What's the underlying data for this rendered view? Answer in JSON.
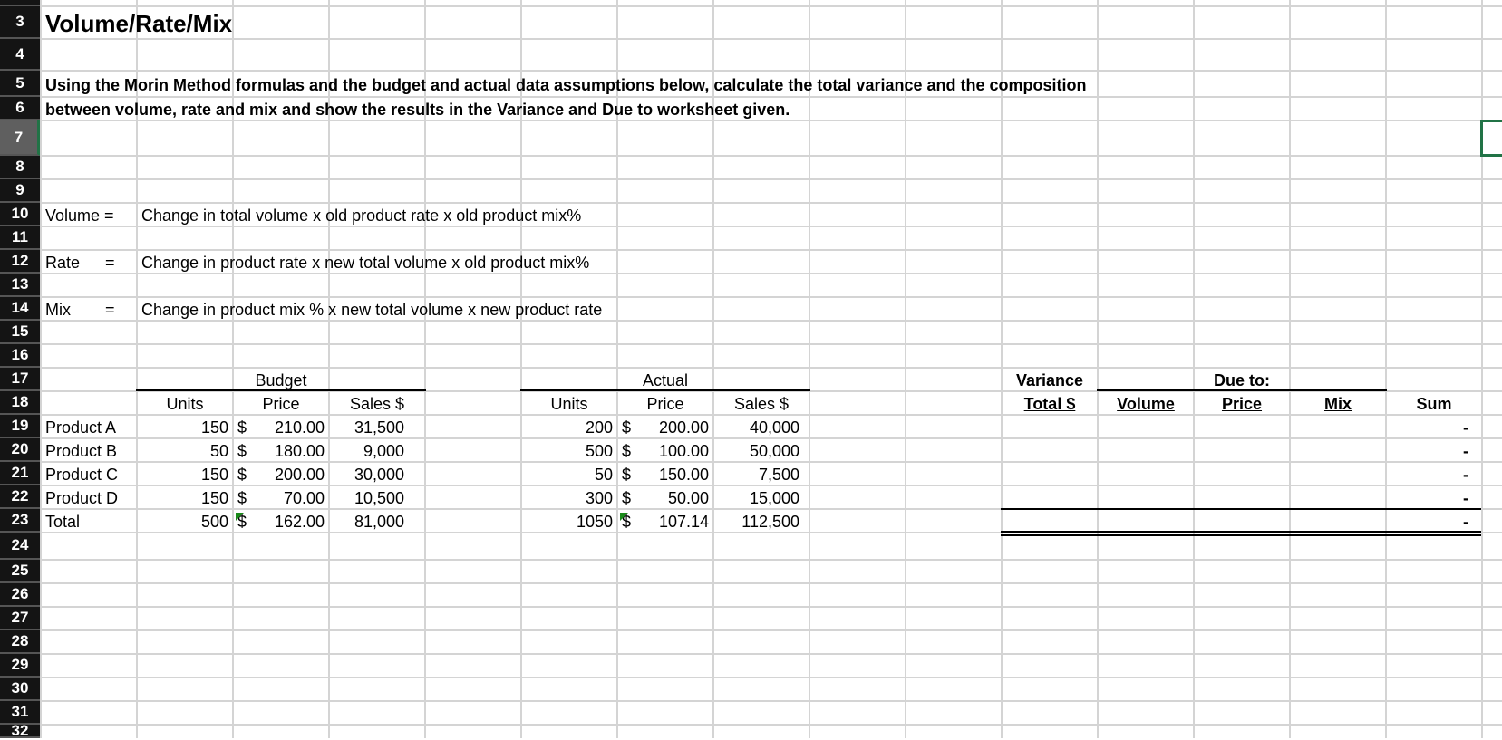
{
  "row_numbers": [
    3,
    4,
    5,
    6,
    7,
    8,
    9,
    10,
    11,
    12,
    13,
    14,
    15,
    16,
    17,
    18,
    19,
    20,
    21,
    22,
    23,
    24,
    25,
    26,
    27,
    28,
    29,
    30,
    31,
    32
  ],
  "selected_row": 7,
  "selected_cell": "P7",
  "title": "Volume/Rate/Mix",
  "instructions": [
    "Using the Morin Method formulas and the budget and actual data assumptions below, calculate the total variance and the composition",
    "between volume, rate and mix and show the results in the Variance and Due to worksheet given."
  ],
  "formulas": [
    {
      "label": "Volume =",
      "eq": "",
      "text": "Change in total volume x old product rate x old product mix%"
    },
    {
      "label": "Rate",
      "eq": "=",
      "text": "Change in product rate x new total volume x old product mix%"
    },
    {
      "label": "Mix",
      "eq": "=",
      "text": "Change in product mix % x new total volume x new product rate"
    }
  ],
  "budget": {
    "header": "Budget",
    "columns": [
      "Units",
      "Price",
      "Sales $"
    ],
    "rows": [
      {
        "product": "Product A",
        "units": "150",
        "currency": "$",
        "price": "210.00",
        "sales": "31,500"
      },
      {
        "product": "Product B",
        "units": "50",
        "currency": "$",
        "price": "180.00",
        "sales": "9,000"
      },
      {
        "product": "Product C",
        "units": "150",
        "currency": "$",
        "price": "200.00",
        "sales": "30,000"
      },
      {
        "product": "Product D",
        "units": "150",
        "currency": "$",
        "price": "70.00",
        "sales": "10,500"
      },
      {
        "product": "Total",
        "units": "500",
        "currency": "$",
        "price": "162.00",
        "sales": "81,000"
      }
    ]
  },
  "actual": {
    "header": "Actual",
    "columns": [
      "Units",
      "Price",
      "Sales $"
    ],
    "rows": [
      {
        "units": "200",
        "currency": "$",
        "price": "200.00",
        "sales": "40,000"
      },
      {
        "units": "500",
        "currency": "$",
        "price": "100.00",
        "sales": "50,000"
      },
      {
        "units": "50",
        "currency": "$",
        "price": "150.00",
        "sales": "7,500"
      },
      {
        "units": "300",
        "currency": "$",
        "price": "50.00",
        "sales": "15,000"
      },
      {
        "units": "1050",
        "currency": "$",
        "price": "107.14",
        "sales": "112,500"
      }
    ]
  },
  "variance": {
    "header": "Variance",
    "due_to_header": "Due to:",
    "columns": [
      "Total $",
      "Volume",
      "Price",
      "Mix",
      "Sum"
    ],
    "sum_values": [
      "-",
      "-",
      "-",
      "-",
      "-"
    ]
  },
  "colors": {
    "row_header_bg": "#141414",
    "selection": "#217346",
    "gridline": "#d4d4d4",
    "formula_flag": "#1a8a1a"
  }
}
